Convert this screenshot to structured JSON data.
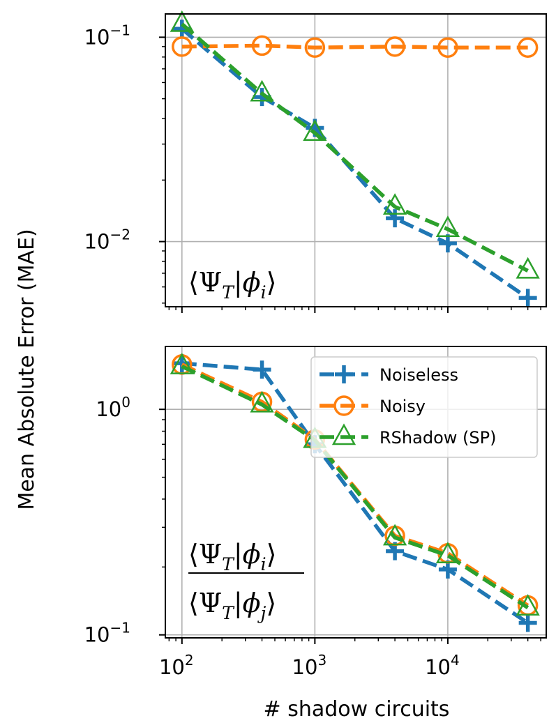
{
  "chart_data": [
    {
      "type": "line",
      "panel": "top",
      "annotation": "⟨Ψ_T|φ_i⟩",
      "xscale": "log",
      "yscale": "log",
      "xlim": [
        75,
        55000
      ],
      "ylim": [
        0.0048,
        0.13
      ],
      "grid": true,
      "x": [
        100,
        400,
        1000,
        4000,
        10000,
        40000
      ],
      "series": [
        {
          "name": "Noiseless",
          "color": "#1f77b4",
          "marker": "plus",
          "values": [
            0.11,
            0.051,
            0.036,
            0.013,
            0.0098,
            0.0053
          ]
        },
        {
          "name": "Noisy",
          "color": "#ff7f0e",
          "marker": "circle",
          "values": [
            0.09,
            0.091,
            0.089,
            0.09,
            0.089,
            0.089
          ]
        },
        {
          "name": "RShadow (SP)",
          "color": "#2ca02c",
          "marker": "triangle",
          "values": [
            0.116,
            0.053,
            0.034,
            0.0148,
            0.0115,
            0.0072
          ]
        }
      ],
      "yticks": [
        {
          "value": 0.1,
          "label": "10",
          "exp": "−1"
        },
        {
          "value": 0.01,
          "label": "10",
          "exp": "−2"
        }
      ]
    },
    {
      "type": "line",
      "panel": "bottom",
      "annotation": "⟨Ψ_T|φ_i⟩ / ⟨Ψ_T|φ_j⟩",
      "xscale": "log",
      "yscale": "log",
      "xlim": [
        75,
        55000
      ],
      "ylim": [
        0.097,
        1.9
      ],
      "grid": true,
      "x": [
        100,
        400,
        1000,
        4000,
        10000,
        40000
      ],
      "series": [
        {
          "name": "Noiseless",
          "color": "#1f77b4",
          "marker": "plus",
          "values": [
            1.6,
            1.5,
            0.7,
            0.235,
            0.195,
            0.113
          ]
        },
        {
          "name": "Noisy",
          "color": "#ff7f0e",
          "marker": "circle",
          "values": [
            1.58,
            1.08,
            0.735,
            0.275,
            0.23,
            0.135
          ]
        },
        {
          "name": "RShadow (SP)",
          "color": "#2ca02c",
          "marker": "triangle",
          "values": [
            1.55,
            1.05,
            0.73,
            0.27,
            0.225,
            0.132
          ]
        }
      ],
      "yticks": [
        {
          "value": 1,
          "label": "10",
          "exp": "0"
        },
        {
          "value": 0.1,
          "label": "10",
          "exp": "−1"
        }
      ],
      "legend": {
        "placement": "upper right",
        "entries": [
          "Noiseless",
          "Noisy",
          "RShadow (SP)"
        ]
      }
    }
  ],
  "axes": {
    "ylabel": "Mean Absolute Error (MAE)",
    "xlabel": "# shadow circuits",
    "xticks": [
      {
        "value": 100,
        "label": "10",
        "exp": "2"
      },
      {
        "value": 1000,
        "label": "10",
        "exp": "3"
      },
      {
        "value": 10000,
        "label": "10",
        "exp": "4"
      }
    ]
  }
}
